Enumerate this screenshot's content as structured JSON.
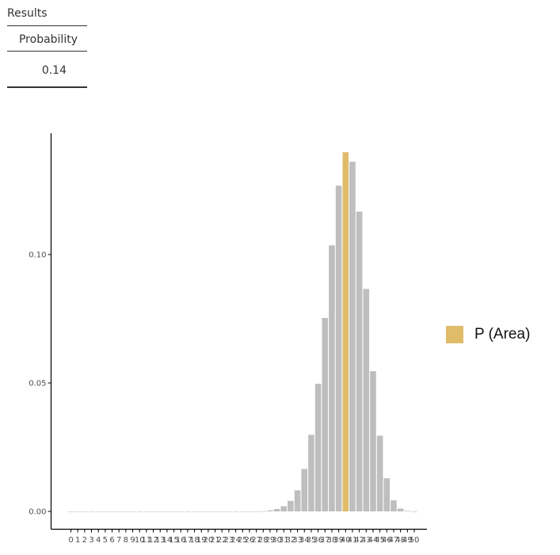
{
  "results_table": {
    "title": "Results",
    "column_header": "Probability",
    "value": "0.14"
  },
  "legend": {
    "label": "P (Area)",
    "color": "#E0BC6A"
  },
  "colors": {
    "highlight": "#E0BC6A",
    "bar": "#BEBEBE",
    "axis": "#000000",
    "tick_text": "#4D4D4D"
  },
  "chart_data": {
    "type": "bar",
    "title": "",
    "xlabel": "",
    "ylabel": "",
    "categories": [
      "0",
      "1",
      "2",
      "3",
      "4",
      "5",
      "6",
      "7",
      "8",
      "9",
      "10",
      "11",
      "12",
      "13",
      "14",
      "15",
      "16",
      "17",
      "18",
      "19",
      "20",
      "21",
      "22",
      "23",
      "24",
      "25",
      "26",
      "27",
      "28",
      "29",
      "30",
      "31",
      "32",
      "33",
      "34",
      "35",
      "36",
      "37",
      "38",
      "39",
      "40",
      "41",
      "42",
      "43",
      "44",
      "45",
      "46",
      "47",
      "48",
      "49",
      "50"
    ],
    "values": [
      0,
      0,
      0,
      0,
      0,
      0,
      0,
      0,
      0,
      0,
      0,
      0,
      0,
      0,
      0,
      0,
      0,
      0,
      0,
      0,
      0,
      0,
      0,
      0,
      0,
      0,
      0,
      0,
      0.0001,
      0.0004,
      0.0009,
      0.002,
      0.0041,
      0.0082,
      0.0165,
      0.0298,
      0.0497,
      0.0753,
      0.1036,
      0.1268,
      0.1398,
      0.1361,
      0.1167,
      0.0866,
      0.0546,
      0.0295,
      0.0129,
      0.0043,
      0.0011,
      0.0002,
      0
    ],
    "highlight_categories": [
      "40"
    ],
    "ylim": [
      0,
      0.14
    ],
    "yticks": [
      0.0,
      0.05,
      0.1
    ],
    "ytick_labels": [
      "0.00",
      "0.05",
      "0.10"
    ],
    "legend_position": "right",
    "grid": false
  }
}
